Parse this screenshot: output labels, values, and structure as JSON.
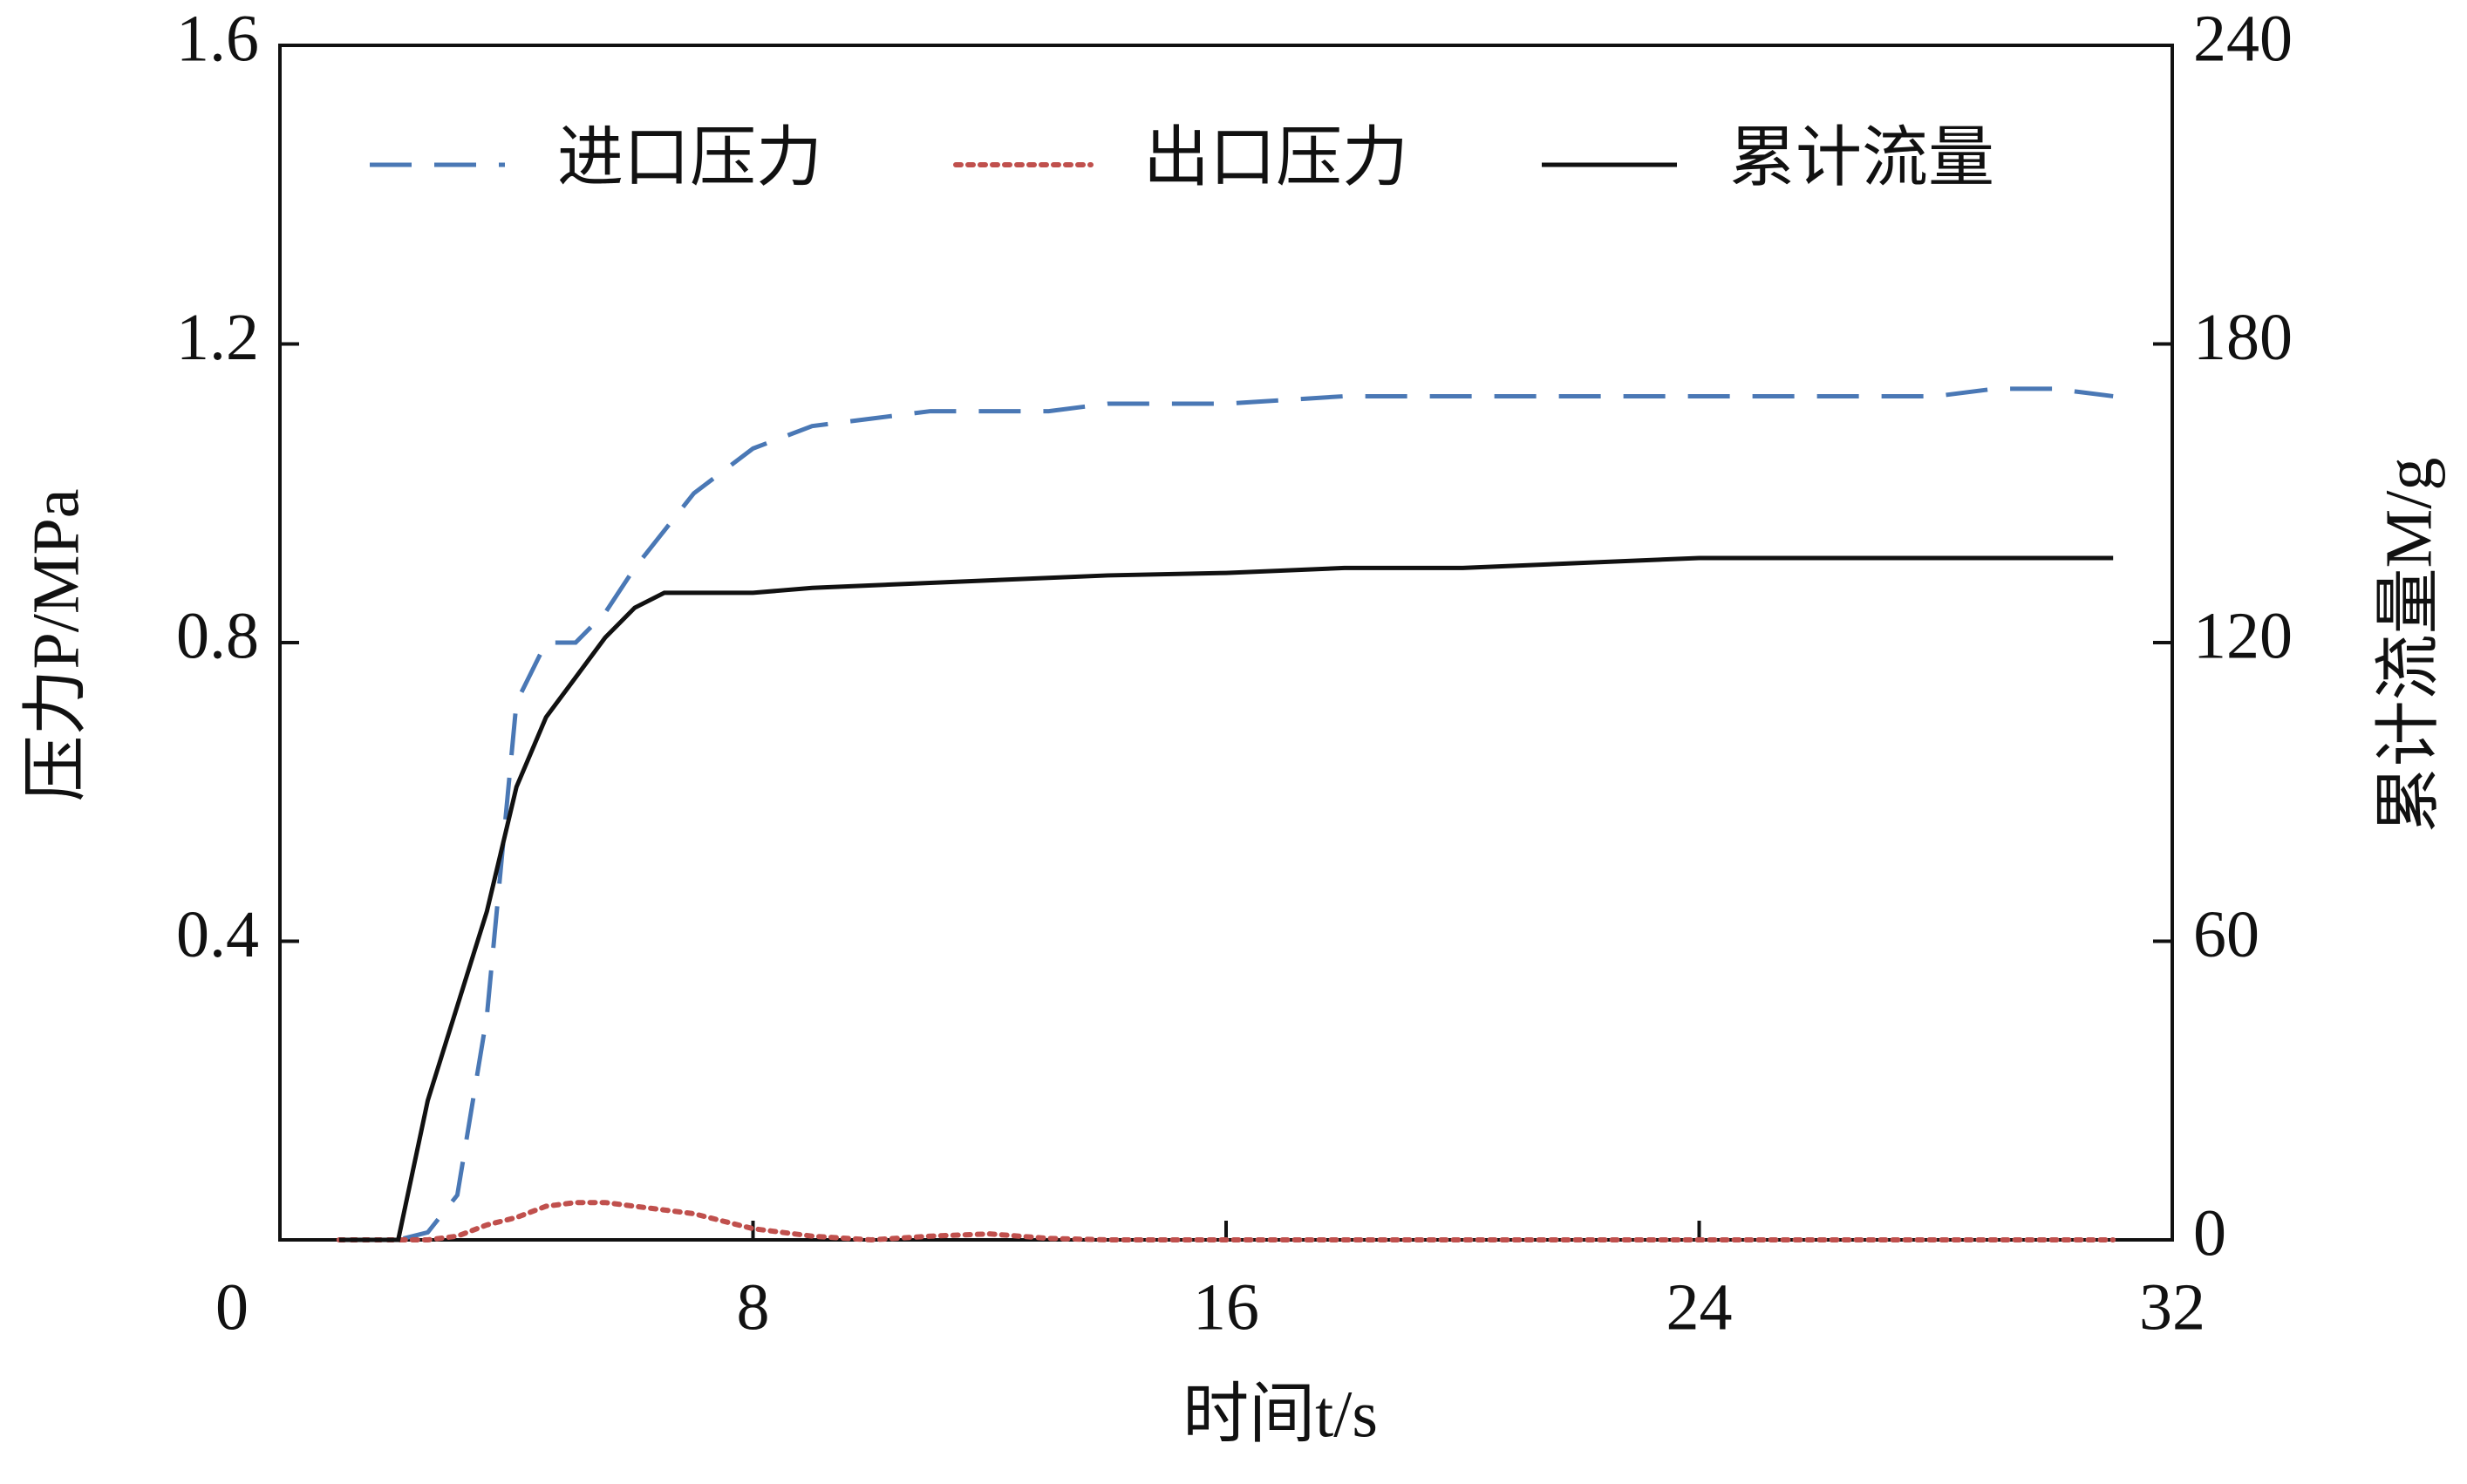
{
  "chart_data": {
    "type": "line",
    "x_label": "时间t/s",
    "y_label": "压力P/MPa",
    "y2_label": "累计流量M/g",
    "x": [
      1,
      2,
      2.5,
      3,
      3.5,
      4,
      4.5,
      5,
      5.5,
      6,
      6.5,
      7,
      8,
      9,
      10,
      11,
      12,
      13,
      14,
      16,
      18,
      20,
      22,
      24,
      26,
      28,
      29,
      30,
      31
    ],
    "series": [
      {
        "name": "进口压力",
        "color": "#4a78b5",
        "line_style": "dashed",
        "values": [
          0,
          0,
          0.01,
          0.06,
          0.3,
          0.72,
          0.8,
          0.8,
          0.84,
          0.9,
          0.95,
          1.0,
          1.06,
          1.09,
          1.1,
          1.11,
          1.11,
          1.11,
          1.12,
          1.12,
          1.13,
          1.13,
          1.13,
          1.13,
          1.13,
          1.13,
          1.14,
          1.14,
          1.13
        ]
      },
      {
        "name": "出口压力",
        "color": "#c0504d",
        "line_style": "dotted",
        "values": [
          0,
          0,
          0,
          0.005,
          0.02,
          0.03,
          0.045,
          0.05,
          0.05,
          0.045,
          0.04,
          0.035,
          0.015,
          0.005,
          0,
          0.005,
          0.008,
          0.002,
          0,
          0,
          0,
          0,
          0,
          0,
          0,
          0,
          0,
          0,
          0
        ]
      },
      {
        "name": "累计流量",
        "color": "#111111",
        "line_style": "solid",
        "axis": "y2",
        "values": [
          0,
          0,
          28,
          47,
          66,
          91,
          105,
          113,
          121,
          127,
          130,
          130,
          130,
          131,
          131.5,
          132,
          132.5,
          133,
          133.5,
          134,
          135,
          135,
          136,
          137,
          137,
          137,
          137,
          137,
          137
        ]
      }
    ],
    "xlim": [
      0,
      32
    ],
    "xticks": [
      0,
      8,
      16,
      24,
      32
    ],
    "ylim": [
      0,
      1.6
    ],
    "yticks": [
      0.4,
      0.8,
      1.2,
      1.6
    ],
    "y2lim": [
      0,
      240
    ],
    "y2ticks": [
      0,
      60,
      120,
      180,
      240
    ],
    "legend": "upper center",
    "grid": false
  }
}
